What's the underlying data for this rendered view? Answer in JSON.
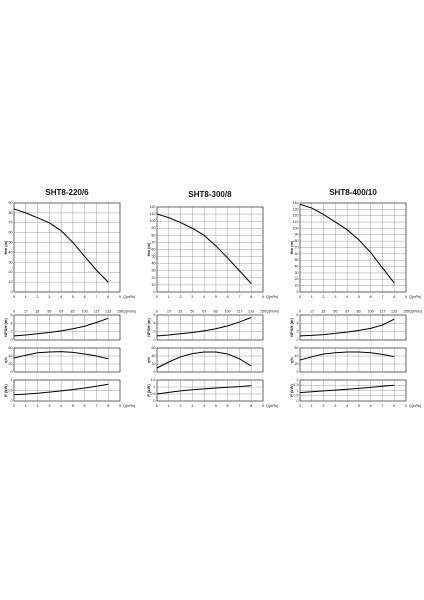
{
  "chart_data": [
    {
      "type": "line",
      "title": "SHT8-220/6",
      "xlabel": "Q(m³/h)",
      "x2label": "Q(l/min)",
      "xlim": [
        0,
        9
      ],
      "xticks": [
        0,
        1,
        2,
        3,
        4,
        5,
        6,
        7,
        8,
        9
      ],
      "x2lim": [
        0,
        150
      ],
      "x2ticks": [
        0,
        17,
        33,
        50,
        67,
        83,
        100,
        117,
        133,
        150
      ],
      "x": [
        0,
        1,
        2,
        3,
        4,
        5,
        6,
        7,
        8
      ],
      "panels": [
        {
          "ylabel": "Hm (m)",
          "ylim": [
            0,
            90
          ],
          "yticks": [
            0,
            10,
            20,
            30,
            40,
            50,
            60,
            70,
            80,
            90
          ],
          "color": "#000000",
          "values": [
            84,
            80,
            75,
            70,
            62,
            50,
            36,
            22,
            10
          ]
        },
        {
          "ylabel": "NPSH (m)",
          "ylim": [
            0,
            6
          ],
          "yticks": [
            0,
            2,
            4,
            6
          ],
          "color": "#000000",
          "values": [
            1,
            1.2,
            1.5,
            1.8,
            2.2,
            2.7,
            3.3,
            4.2,
            5.2
          ]
        },
        {
          "ylabel": "η%",
          "ylim": [
            0,
            60
          ],
          "yticks": [
            0,
            20,
            40,
            60
          ],
          "color": "#000000",
          "values": [
            35,
            42,
            48,
            50,
            51,
            49,
            45,
            40,
            33
          ]
        },
        {
          "ylabel": "P (kW)",
          "ylim": [
            0,
            1
          ],
          "yticks": [
            0,
            0.5,
            1
          ],
          "color": "#000000",
          "values": [
            0.3,
            0.33,
            0.37,
            0.42,
            0.48,
            0.55,
            0.62,
            0.7,
            0.8
          ]
        }
      ]
    },
    {
      "type": "line",
      "title": "SHT8-300/8",
      "xlabel": "Q(m³/h)",
      "x2label": "Q(l/min)",
      "xlim": [
        0,
        9
      ],
      "xticks": [
        0,
        1,
        2,
        3,
        4,
        5,
        6,
        7,
        8,
        9
      ],
      "x2lim": [
        0,
        150
      ],
      "x2ticks": [
        0,
        17,
        33,
        50,
        67,
        83,
        100,
        117,
        133,
        150
      ],
      "x": [
        0,
        1,
        2,
        3,
        4,
        5,
        6,
        7,
        8
      ],
      "panels": [
        {
          "ylabel": "Hm (m)",
          "ylim": [
            0,
            120
          ],
          "yticks": [
            0,
            10,
            20,
            30,
            40,
            50,
            60,
            70,
            80,
            90,
            100,
            110,
            120
          ],
          "color": "#000000",
          "values": [
            110,
            105,
            98,
            90,
            80,
            65,
            48,
            30,
            12
          ]
        },
        {
          "ylabel": "NPSH (m)",
          "ylim": [
            0,
            6
          ],
          "yticks": [
            0,
            2,
            4,
            6
          ],
          "color": "#000000",
          "values": [
            1,
            1.2,
            1.5,
            1.8,
            2.2,
            2.7,
            3.4,
            4.3,
            5.4
          ]
        },
        {
          "ylabel": "η%",
          "ylim": [
            0,
            60
          ],
          "yticks": [
            0,
            20,
            40,
            60
          ],
          "color": "#000000",
          "values": [
            10,
            25,
            38,
            46,
            50,
            50,
            45,
            33,
            15
          ]
        },
        {
          "ylabel": "P (kW)",
          "ylim": [
            0,
            1.5
          ],
          "yticks": [
            0,
            0.5,
            1,
            1.5
          ],
          "color": "#000000",
          "values": [
            0.5,
            0.62,
            0.72,
            0.8,
            0.87,
            0.93,
            0.98,
            1.03,
            1.1
          ]
        }
      ]
    },
    {
      "type": "line",
      "title": "SHT8-400/10",
      "xlabel": "Q(m³/h)",
      "x2label": "Q(l/min)",
      "xlim": [
        0,
        9
      ],
      "xticks": [
        0,
        1,
        2,
        3,
        4,
        5,
        6,
        7,
        8,
        9
      ],
      "x2lim": [
        0,
        150
      ],
      "x2ticks": [
        0,
        17,
        33,
        50,
        67,
        83,
        100,
        117,
        133,
        150
      ],
      "x": [
        0,
        1,
        2,
        3,
        4,
        5,
        6,
        7,
        8
      ],
      "panels": [
        {
          "ylabel": "Hm (m)",
          "ylim": [
            0,
            140
          ],
          "yticks": [
            0,
            10,
            20,
            30,
            40,
            50,
            60,
            70,
            80,
            90,
            100,
            110,
            120,
            130,
            140
          ],
          "color": "#000000",
          "values": [
            138,
            132,
            122,
            110,
            98,
            82,
            62,
            38,
            14
          ]
        },
        {
          "ylabel": "NPSH (m)",
          "ylim": [
            0,
            6
          ],
          "yticks": [
            0,
            2,
            4,
            6
          ],
          "color": "#000000",
          "values": [
            1,
            1.1,
            1.3,
            1.6,
            1.9,
            2.3,
            2.8,
            3.6,
            5
          ]
        },
        {
          "ylabel": "η%",
          "ylim": [
            0,
            60
          ],
          "yticks": [
            0,
            20,
            40,
            60
          ],
          "color": "#000000",
          "values": [
            30,
            38,
            45,
            48,
            50,
            50,
            48,
            44,
            38
          ]
        },
        {
          "ylabel": "P (kW)",
          "ylim": [
            0,
            2
          ],
          "yticks": [
            0,
            0.5,
            1,
            1.5,
            2
          ],
          "color": "#000000",
          "values": [
            0.8,
            0.88,
            0.96,
            1.04,
            1.12,
            1.2,
            1.3,
            1.4,
            1.5
          ]
        }
      ]
    }
  ]
}
